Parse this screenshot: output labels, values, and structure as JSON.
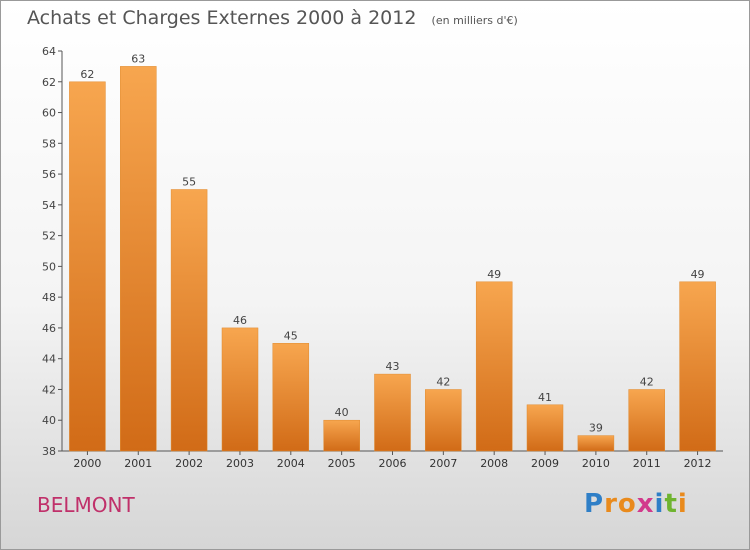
{
  "title": "Achats et Charges Externes 2000 à 2012",
  "subtitle": "(en milliers d'€)",
  "city": "BELMONT",
  "logo": {
    "letters": [
      "P",
      "r",
      "o",
      "x",
      "i",
      "t",
      "i"
    ],
    "colors": [
      "#2f7fc7",
      "#e98a1c",
      "#e98a1c",
      "#d23a8c",
      "#2f7fc7",
      "#6fb430",
      "#e98a1c"
    ]
  },
  "colors": {
    "bar_light": "#f7a64f",
    "bar_dark": "#d16b17",
    "axis": "#555555",
    "grid": "#cccccc"
  },
  "chart_data": {
    "type": "bar",
    "categories": [
      "2000",
      "2001",
      "2002",
      "2003",
      "2004",
      "2005",
      "2006",
      "2007",
      "2008",
      "2009",
      "2010",
      "2011",
      "2012"
    ],
    "values": [
      62,
      63,
      55,
      46,
      45,
      40,
      43,
      42,
      49,
      41,
      39,
      42,
      49
    ],
    "ylim": [
      38,
      64
    ],
    "yticks": [
      38,
      40,
      42,
      44,
      46,
      48,
      50,
      52,
      54,
      56,
      58,
      60,
      62,
      64
    ],
    "data_labels": true,
    "grid": false
  }
}
